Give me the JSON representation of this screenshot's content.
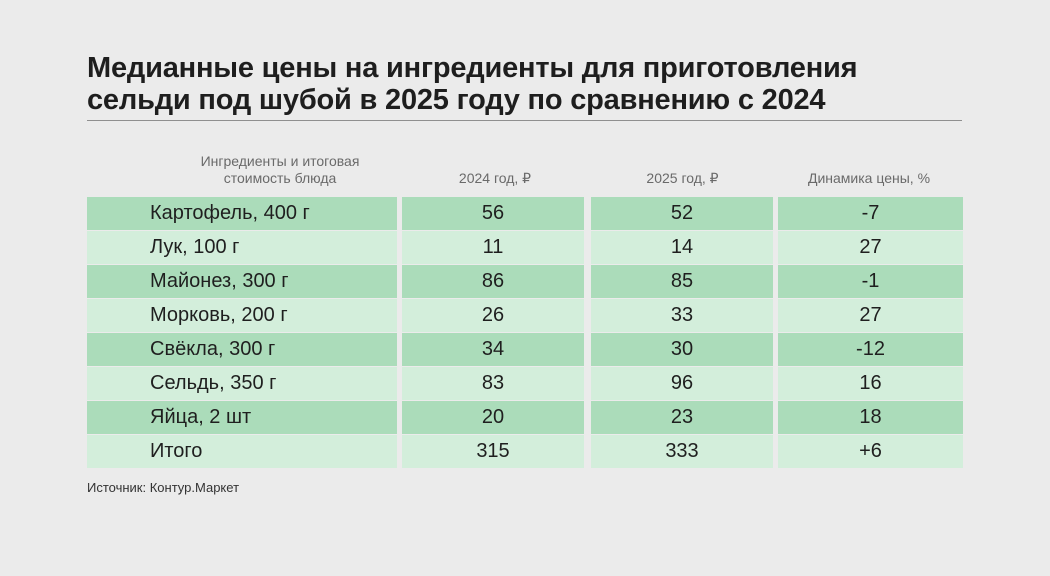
{
  "title_line1": "Медианные цены на ингредиенты для приготовления",
  "title_line2": "сельди под шубой в 2025 году по сравнению с 2024",
  "headers": {
    "ingredient_line1": "Ингредиенты и итоговая",
    "ingredient_line2": "стоимость блюда",
    "price_2024": "2024 год, ₽",
    "price_2025": "2025 год, ₽",
    "dynamics": "Динамика цены, %"
  },
  "source": "Источник: Контур.Маркет",
  "colors": {
    "row_dark": "#abdcba",
    "row_light": "#d3eedb",
    "background": "#ebebeb"
  },
  "chart_data": {
    "type": "table",
    "title": "Медианные цены на ингредиенты для приготовления сельди под шубой в 2025 году по сравнению с 2024",
    "columns": [
      "Ингредиенты и итоговая стоимость блюда",
      "2024 год, ₽",
      "2025 год, ₽",
      "Динамика цены, %"
    ],
    "rows": [
      {
        "name": "Картофель, 400 г",
        "v2024": "56",
        "v2025": "52",
        "dynamics": "-7"
      },
      {
        "name": "Лук, 100 г",
        "v2024": "11",
        "v2025": "14",
        "dynamics": "27"
      },
      {
        "name": "Майонез, 300 г",
        "v2024": "86",
        "v2025": "85",
        "dynamics": "-1"
      },
      {
        "name": "Морковь, 200 г",
        "v2024": "26",
        "v2025": "33",
        "dynamics": "27"
      },
      {
        "name": "Свёкла, 300 г",
        "v2024": "34",
        "v2025": "30",
        "dynamics": "-12"
      },
      {
        "name": "Сельдь, 350 г",
        "v2024": "83",
        "v2025": "96",
        "dynamics": "16"
      },
      {
        "name": "Яйца, 2 шт",
        "v2024": "20",
        "v2025": "23",
        "dynamics": "18"
      },
      {
        "name": "Итого",
        "v2024": "315",
        "v2025": "333",
        "dynamics": "+6"
      }
    ]
  }
}
